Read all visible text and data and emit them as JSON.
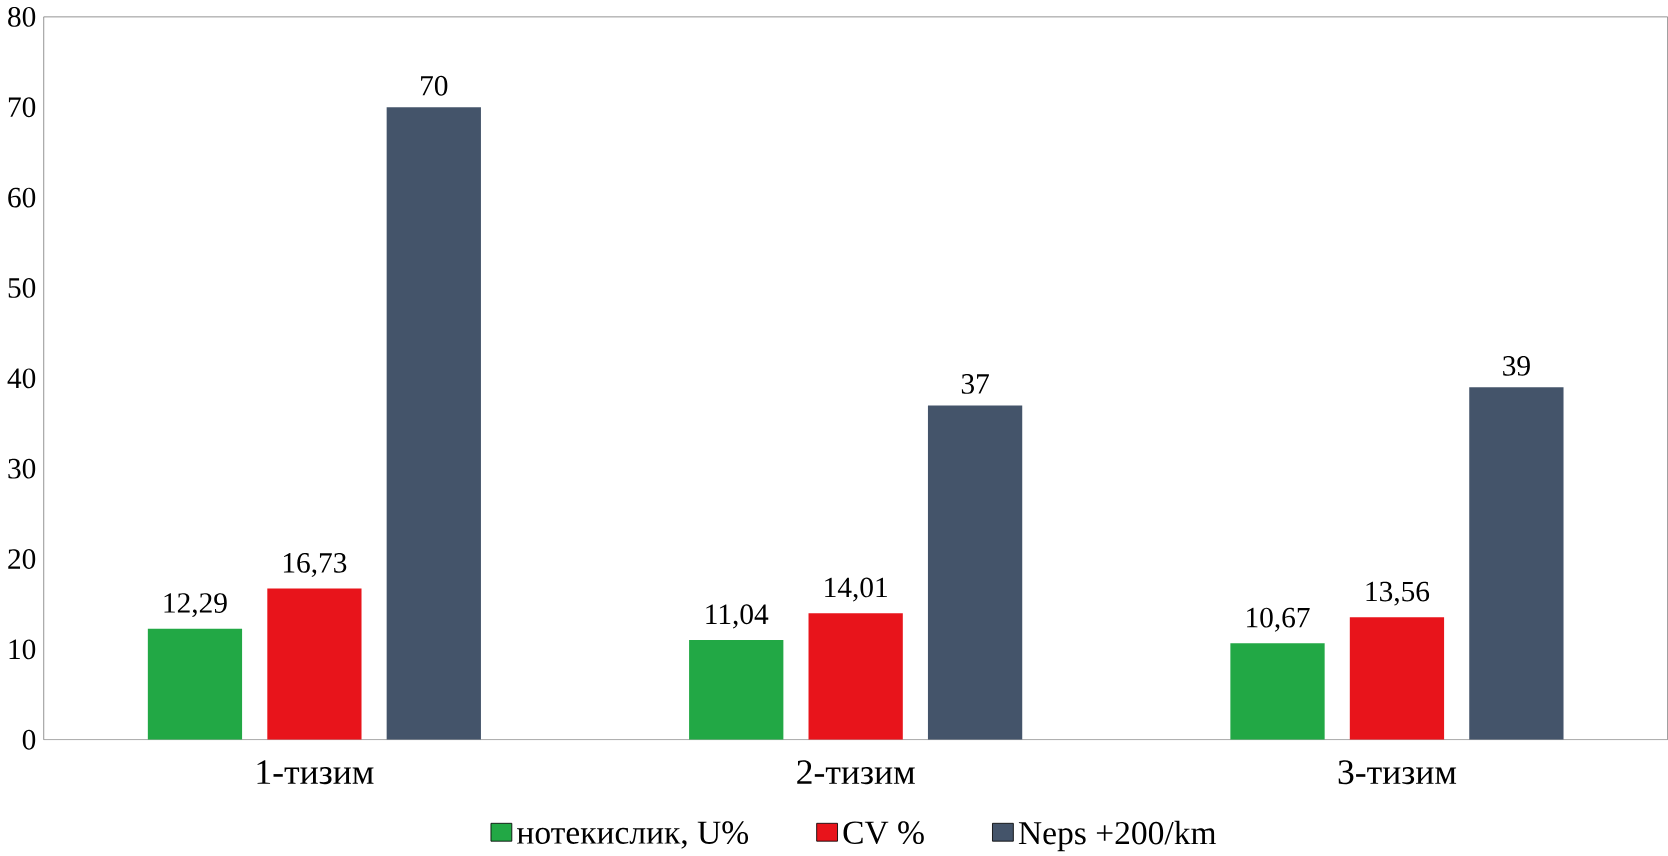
{
  "chart_data": {
    "type": "bar",
    "categories": [
      "1-тизим",
      "2-тизим",
      "3-тизим"
    ],
    "series": [
      {
        "name": "нотекислик, U%",
        "color": "#22a845",
        "values": [
          12.29,
          11.04,
          10.67
        ],
        "value_labels": [
          "12,29",
          "11,04",
          "10,67"
        ]
      },
      {
        "name": "CV %",
        "color": "#e8141b",
        "values": [
          16.73,
          14.01,
          13.56
        ],
        "value_labels": [
          "16,73",
          "14,01",
          "13,56"
        ]
      },
      {
        "name": "Neps +200/km",
        "color": "#44546a",
        "values": [
          70,
          37,
          39
        ],
        "value_labels": [
          "70",
          "37",
          "39"
        ]
      }
    ],
    "ylim": [
      0,
      80
    ],
    "yticks": [
      0,
      10,
      20,
      30,
      40,
      50,
      60,
      70,
      80
    ],
    "grid": false,
    "legend": "bottom"
  }
}
